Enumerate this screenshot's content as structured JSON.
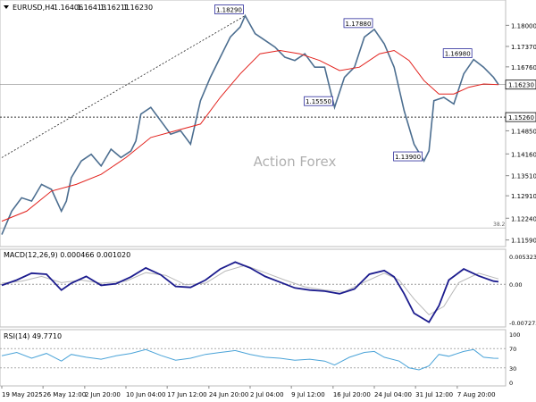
{
  "chart_data": [
    {
      "type": "line",
      "panel": "price",
      "instrument_header": "EURUSD,H4",
      "ohlc": [
        "1.16406",
        "1.16413",
        "1.16211",
        "1.16230"
      ],
      "watermark": "Action Forex",
      "y_range": [
        1.115,
        1.1865
      ],
      "y_ticks": [
        "1.18000",
        "1.17370",
        "1.16760",
        "1.16230",
        "1.15260",
        "1.14850",
        "1.14160",
        "1.13510",
        "1.12910",
        "1.12240",
        "1.11590"
      ],
      "y_tick_values": [
        1.18,
        1.1737,
        1.1676,
        1.1623,
        1.1526,
        1.1485,
        1.1416,
        1.1351,
        1.1291,
        1.1224,
        1.1159
      ],
      "x_labels": [
        "19 May 2025",
        "26 May 12:00",
        "2 Jun 20:00",
        "10 Jun 04:00",
        "17 Jun 12:00",
        "24 Jun 20:00",
        "2 Jul 04:00",
        "9 Jul 12:00",
        "16 Jul 20:00",
        "24 Jul 04:00",
        "31 Jul 12:00",
        "7 Aug 20:00"
      ],
      "x_range": [
        0,
        100
      ],
      "x_label_positions": [
        0,
        8.3,
        16.7,
        25,
        33.3,
        41.7,
        50,
        58.3,
        66.7,
        75,
        83.3,
        91.7
      ],
      "price_series": {
        "name": "EURUSD",
        "points": [
          [
            0,
            1.1175
          ],
          [
            2,
            1.1245
          ],
          [
            4,
            1.1285
          ],
          [
            6,
            1.1275
          ],
          [
            8,
            1.1325
          ],
          [
            10,
            1.131
          ],
          [
            12,
            1.1245
          ],
          [
            13,
            1.1275
          ],
          [
            14,
            1.1345
          ],
          [
            16,
            1.1395
          ],
          [
            18,
            1.1415
          ],
          [
            20,
            1.138
          ],
          [
            22,
            1.143
          ],
          [
            24,
            1.1405
          ],
          [
            26,
            1.1425
          ],
          [
            27,
            1.1455
          ],
          [
            28,
            1.1535
          ],
          [
            30,
            1.1555
          ],
          [
            32,
            1.1515
          ],
          [
            34,
            1.1475
          ],
          [
            36,
            1.1485
          ],
          [
            38,
            1.1445
          ],
          [
            40,
            1.1575
          ],
          [
            42,
            1.1645
          ],
          [
            44,
            1.1705
          ],
          [
            46,
            1.1765
          ],
          [
            48,
            1.1795
          ],
          [
            49,
            1.1829
          ],
          [
            51,
            1.1775
          ],
          [
            53,
            1.1755
          ],
          [
            55,
            1.1735
          ],
          [
            57,
            1.1705
          ],
          [
            59,
            1.1695
          ],
          [
            61,
            1.1715
          ],
          [
            63,
            1.1675
          ],
          [
            65,
            1.1675
          ],
          [
            67,
            1.1555
          ],
          [
            69,
            1.1645
          ],
          [
            71,
            1.1675
          ],
          [
            73,
            1.1765
          ],
          [
            75,
            1.1788
          ],
          [
            77,
            1.1745
          ],
          [
            79,
            1.1675
          ],
          [
            81,
            1.1545
          ],
          [
            83,
            1.1445
          ],
          [
            85,
            1.1395
          ],
          [
            86,
            1.1425
          ],
          [
            87,
            1.1575
          ],
          [
            89,
            1.1585
          ],
          [
            91,
            1.1565
          ],
          [
            93,
            1.1655
          ],
          [
            95,
            1.1698
          ],
          [
            97,
            1.1675
          ],
          [
            99,
            1.1645
          ],
          [
            100,
            1.1623
          ]
        ]
      },
      "moving_average": {
        "points": [
          [
            0,
            1.1215
          ],
          [
            5,
            1.1245
          ],
          [
            10,
            1.1305
          ],
          [
            15,
            1.1325
          ],
          [
            20,
            1.1355
          ],
          [
            25,
            1.1405
          ],
          [
            30,
            1.1465
          ],
          [
            35,
            1.1485
          ],
          [
            40,
            1.1505
          ],
          [
            44,
            1.1585
          ],
          [
            48,
            1.1655
          ],
          [
            52,
            1.1715
          ],
          [
            56,
            1.1725
          ],
          [
            60,
            1.1715
          ],
          [
            64,
            1.1695
          ],
          [
            68,
            1.1665
          ],
          [
            72,
            1.1675
          ],
          [
            76,
            1.1715
          ],
          [
            79,
            1.1725
          ],
          [
            82,
            1.1695
          ],
          [
            85,
            1.1635
          ],
          [
            88,
            1.1595
          ],
          [
            91,
            1.1595
          ],
          [
            94,
            1.1615
          ],
          [
            97,
            1.1625
          ],
          [
            100,
            1.1623
          ]
        ]
      },
      "trendline": {
        "points": [
          [
            0,
            1.1405
          ],
          [
            49,
            1.1829
          ]
        ]
      },
      "horizontal_line": {
        "value": 1.1526,
        "label": "1.15260"
      },
      "fib_line": {
        "value": 1.1195,
        "label": "38.2"
      },
      "current_price": {
        "value": 1.1623,
        "label": "1.16230"
      },
      "annotations": [
        {
          "label": "1.18290",
          "x": 49,
          "y": 1.1829
        },
        {
          "label": "1.17880",
          "x": 75,
          "y": 1.1788
        },
        {
          "label": "1.16980",
          "x": 95,
          "y": 1.1698
        },
        {
          "label": "1.15550",
          "x": 67,
          "y": 1.1555
        },
        {
          "label": "1.13900",
          "x": 85,
          "y": 1.139
        }
      ],
      "colors": {
        "price": "#4c6e90",
        "ma": "#e2211c",
        "trend": "#222222",
        "label_border": "#2b2b9b"
      }
    },
    {
      "type": "line",
      "panel": "macd",
      "title": "MACD(12,26,9) 0.000466 0.001020",
      "y_range": [
        -0.0076,
        0.0058
      ],
      "y_ticks": [
        "0.005323",
        "0.00",
        "-0.007273"
      ],
      "y_tick_values": [
        0.005323,
        0.0,
        -0.007273
      ],
      "series": [
        {
          "name": "MACD",
          "points": [
            [
              0,
              -0.0002
            ],
            [
              3,
              0.0008
            ],
            [
              6,
              0.0021
            ],
            [
              9,
              0.0019
            ],
            [
              12,
              -0.0011
            ],
            [
              14,
              0.0002
            ],
            [
              17,
              0.0015
            ],
            [
              20,
              -0.0002
            ],
            [
              23,
              0.0001
            ],
            [
              26,
              0.0014
            ],
            [
              29,
              0.0031
            ],
            [
              32,
              0.0018
            ],
            [
              35,
              -0.0004
            ],
            [
              38,
              -0.0006
            ],
            [
              41,
              0.0008
            ],
            [
              44,
              0.0029
            ],
            [
              47,
              0.0042
            ],
            [
              50,
              0.0031
            ],
            [
              53,
              0.0015
            ],
            [
              56,
              0.0004
            ],
            [
              59,
              -0.0007
            ],
            [
              62,
              -0.0011
            ],
            [
              65,
              -0.0013
            ],
            [
              68,
              -0.0018
            ],
            [
              71,
              -0.0009
            ],
            [
              74,
              0.0019
            ],
            [
              77,
              0.0026
            ],
            [
              79,
              0.0014
            ],
            [
              81,
              -0.0018
            ],
            [
              83,
              -0.0055
            ],
            [
              86,
              -0.0072
            ],
            [
              88,
              -0.0041
            ],
            [
              90,
              0.0008
            ],
            [
              93,
              0.0029
            ],
            [
              96,
              0.0016
            ],
            [
              99,
              0.0006
            ],
            [
              100,
              0.000466
            ]
          ]
        },
        {
          "name": "Signal",
          "points": [
            [
              0,
              0.0002
            ],
            [
              4,
              0.0006
            ],
            [
              8,
              0.0015
            ],
            [
              12,
              0.0003
            ],
            [
              16,
              0.0008
            ],
            [
              20,
              0.0002
            ],
            [
              25,
              0.0006
            ],
            [
              29,
              0.0022
            ],
            [
              33,
              0.0017
            ],
            [
              37,
              -0.0001
            ],
            [
              41,
              0.0002
            ],
            [
              45,
              0.0025
            ],
            [
              49,
              0.0036
            ],
            [
              53,
              0.0022
            ],
            [
              57,
              0.0008
            ],
            [
              61,
              -0.0005
            ],
            [
              65,
              -0.0011
            ],
            [
              69,
              -0.0014
            ],
            [
              73,
              0.0004
            ],
            [
              77,
              0.0021
            ],
            [
              80,
              0.0008
            ],
            [
              83,
              -0.0028
            ],
            [
              86,
              -0.0058
            ],
            [
              89,
              -0.0042
            ],
            [
              92,
              0.0003
            ],
            [
              96,
              0.0021
            ],
            [
              100,
              0.00102
            ]
          ]
        }
      ],
      "colors": {
        "macd": "#1c1c8e",
        "signal": "#b8b8b8"
      }
    },
    {
      "type": "line",
      "panel": "rsi",
      "title": "RSI(14) 49.7710",
      "y_range": [
        0,
        100
      ],
      "y_ticks": [
        "100",
        "70",
        "30",
        "0"
      ],
      "y_tick_values": [
        100,
        70,
        30,
        0
      ],
      "series": [
        {
          "name": "RSI",
          "points": [
            [
              0,
              55
            ],
            [
              3,
              62
            ],
            [
              6,
              50
            ],
            [
              9,
              60
            ],
            [
              12,
              44
            ],
            [
              14,
              58
            ],
            [
              17,
              52
            ],
            [
              20,
              48
            ],
            [
              23,
              55
            ],
            [
              26,
              60
            ],
            [
              29,
              68
            ],
            [
              32,
              56
            ],
            [
              35,
              46
            ],
            [
              38,
              50
            ],
            [
              41,
              58
            ],
            [
              44,
              62
            ],
            [
              47,
              66
            ],
            [
              50,
              58
            ],
            [
              53,
              52
            ],
            [
              56,
              50
            ],
            [
              59,
              46
            ],
            [
              62,
              48
            ],
            [
              65,
              44
            ],
            [
              67,
              36
            ],
            [
              70,
              52
            ],
            [
              73,
              62
            ],
            [
              75,
              64
            ],
            [
              77,
              52
            ],
            [
              80,
              44
            ],
            [
              82,
              30
            ],
            [
              84,
              26
            ],
            [
              86,
              34
            ],
            [
              88,
              58
            ],
            [
              90,
              54
            ],
            [
              93,
              64
            ],
            [
              95,
              68
            ],
            [
              97,
              52
            ],
            [
              99,
              50
            ],
            [
              100,
              49.771
            ]
          ]
        }
      ],
      "colors": {
        "rsi": "#4aa3d8"
      }
    }
  ]
}
